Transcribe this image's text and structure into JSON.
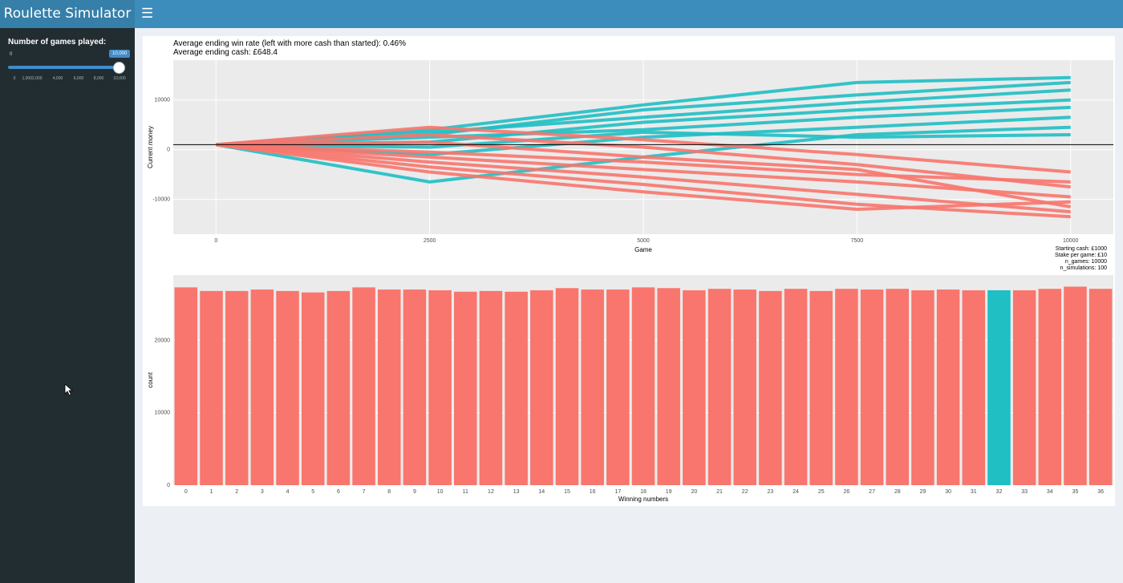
{
  "app": {
    "title": "Roulette Simulator"
  },
  "sidebar": {
    "slider_label": "Number of games played:",
    "slider_min": "0",
    "slider_value": "10,000",
    "slider_fraction": 1.0,
    "ticks": [
      "0",
      "1,0002,000",
      "4,000",
      "6,000",
      "8,000",
      "10,000"
    ]
  },
  "stats": {
    "win_rate": "Average ending win rate (left with more cash than started): 0.46%",
    "ending_cash": "Average ending cash: £648.4"
  },
  "meta": {
    "starting_cash": "Starting cash: £1000",
    "stake": "Stake per game: £10",
    "n_games": "n_games: 10000",
    "n_simulations": "n_simulations: 100"
  },
  "colors": {
    "win": "#1fbfc4",
    "loss": "#f8766d",
    "panel_bg": "#ebebeb",
    "sidebar": "#222d32",
    "header": "#3c8dbc"
  },
  "chart_data": [
    {
      "type": "line",
      "xlabel": "Game",
      "ylabel": "Current money",
      "xlim": [
        -500,
        10500
      ],
      "ylim": [
        -17000,
        18000
      ],
      "x_ticks": [
        0,
        2500,
        5000,
        7500,
        10000
      ],
      "x_tick_labels": [
        "0",
        "2500",
        "5000",
        "7500",
        "10000"
      ],
      "y_ticks": [
        -10000,
        0,
        10000
      ],
      "y_tick_labels": [
        "-10000",
        "0",
        "10000"
      ],
      "reference_line": 1000,
      "series": [
        {
          "color": "#1fbfc4",
          "x": [
            0,
            2500,
            5000,
            7500,
            10000
          ],
          "y": [
            1000,
            4000,
            9000,
            13500,
            14500
          ]
        },
        {
          "color": "#1fbfc4",
          "x": [
            0,
            2500,
            5000,
            7500,
            10000
          ],
          "y": [
            1000,
            3000,
            8000,
            11000,
            13500
          ]
        },
        {
          "color": "#1fbfc4",
          "x": [
            0,
            2500,
            5000,
            7500,
            10000
          ],
          "y": [
            1000,
            1500,
            5500,
            8000,
            10000
          ]
        },
        {
          "color": "#1fbfc4",
          "x": [
            0,
            2500,
            5000,
            7500,
            10000
          ],
          "y": [
            1000,
            2500,
            4000,
            6500,
            8500
          ]
        },
        {
          "color": "#1fbfc4",
          "x": [
            0,
            2500,
            5000,
            7500,
            10000
          ],
          "y": [
            1000,
            -1000,
            2500,
            4500,
            6500
          ]
        },
        {
          "color": "#1fbfc4",
          "x": [
            0,
            2500,
            5000,
            7500,
            10000
          ],
          "y": [
            1000,
            -6500,
            -1500,
            3000,
            4500
          ]
        },
        {
          "color": "#1fbfc4",
          "x": [
            0,
            2500,
            5000,
            7500,
            10000
          ],
          "y": [
            1000,
            500,
            3500,
            2500,
            3000
          ]
        },
        {
          "color": "#1fbfc4",
          "x": [
            0,
            2500,
            5000,
            7500,
            10000
          ],
          "y": [
            1000,
            3500,
            6500,
            9500,
            12000
          ]
        },
        {
          "color": "#f8766d",
          "x": [
            0,
            2500,
            5000,
            7500,
            10000
          ],
          "y": [
            1000,
            -2500,
            -5500,
            -9000,
            -12500
          ]
        },
        {
          "color": "#f8766d",
          "x": [
            0,
            2500,
            5000,
            7500,
            10000
          ],
          "y": [
            1000,
            -3500,
            -7000,
            -11000,
            -13500
          ]
        },
        {
          "color": "#f8766d",
          "x": [
            0,
            2500,
            5000,
            7500,
            10000
          ],
          "y": [
            1000,
            -1500,
            -4000,
            -6500,
            -9500
          ]
        },
        {
          "color": "#f8766d",
          "x": [
            0,
            2500,
            5000,
            7500,
            10000
          ],
          "y": [
            1000,
            4500,
            2000,
            -1000,
            -4500
          ]
        },
        {
          "color": "#f8766d",
          "x": [
            0,
            2500,
            5000,
            7500,
            10000
          ],
          "y": [
            1000,
            3000,
            500,
            -3000,
            -7500
          ]
        },
        {
          "color": "#f8766d",
          "x": [
            0,
            2500,
            5000,
            7500,
            10000
          ],
          "y": [
            1000,
            -500,
            -2500,
            -5000,
            -6500
          ]
        },
        {
          "color": "#f8766d",
          "x": [
            0,
            2500,
            5000,
            7500,
            10000
          ],
          "y": [
            1000,
            1500,
            -1500,
            -4000,
            -11500
          ]
        },
        {
          "color": "#f8766d",
          "x": [
            0,
            2500,
            5000,
            7500,
            10000
          ],
          "y": [
            1000,
            -4500,
            -8500,
            -12000,
            -10500
          ]
        }
      ]
    },
    {
      "type": "bar",
      "xlabel": "Winning numbers",
      "ylabel": "count",
      "ylim": [
        0,
        29000
      ],
      "y_ticks": [
        0,
        10000,
        20000
      ],
      "y_tick_labels": [
        "0",
        "10000",
        "20000"
      ],
      "highlight_index": 32,
      "categories": [
        "0",
        "1",
        "2",
        "3",
        "4",
        "5",
        "6",
        "7",
        "8",
        "9",
        "10",
        "11",
        "12",
        "13",
        "14",
        "15",
        "16",
        "17",
        "18",
        "19",
        "20",
        "21",
        "22",
        "23",
        "24",
        "25",
        "26",
        "27",
        "28",
        "29",
        "30",
        "31",
        "32",
        "33",
        "34",
        "35",
        "36"
      ],
      "values": [
        27300,
        26800,
        26800,
        27000,
        26800,
        26600,
        26800,
        27300,
        27000,
        27000,
        26900,
        26700,
        26800,
        26700,
        26900,
        27200,
        27000,
        27000,
        27300,
        27200,
        26900,
        27100,
        27000,
        26800,
        27100,
        26800,
        27100,
        27000,
        27100,
        26900,
        27000,
        26900,
        26900,
        26900,
        27100,
        27400,
        27100
      ]
    }
  ]
}
